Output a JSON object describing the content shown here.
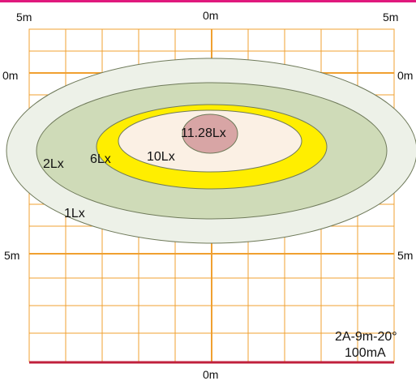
{
  "diagram": {
    "top_labels": {
      "left": "5m",
      "center": "0m",
      "right": "5m"
    },
    "side_labels": {
      "upper_left": "0m",
      "upper_right": "0m",
      "lower_left": "5m",
      "lower_right": "5m"
    },
    "bottom_label": "0m",
    "zones": [
      {
        "label": "1Lx",
        "color": "#edf1e8"
      },
      {
        "label": "2Lx",
        "color": "#cfdbb8"
      },
      {
        "label": "6Lx",
        "color": "#ffee00"
      },
      {
        "label": "10Lx",
        "color": "#fbf0e4"
      },
      {
        "label": "11.28Lx",
        "color": "#d8a5a5"
      }
    ],
    "caption": {
      "line1": "2A-9m-20°",
      "line2": "100mA"
    }
  },
  "colors": {
    "accent_bar": "#e0197d",
    "grid": "#f0a030",
    "axis": "#f0a030",
    "baseline": "#c0203c",
    "zone_outline": "#6f7a5a"
  }
}
